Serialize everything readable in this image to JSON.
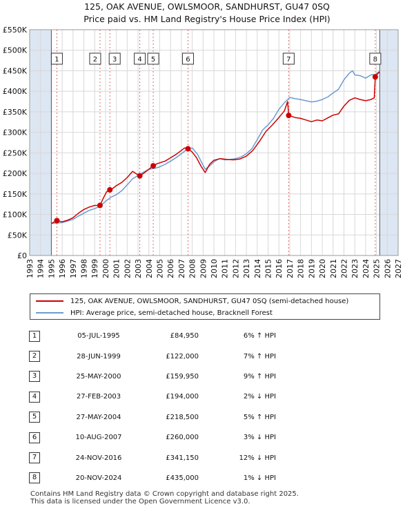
{
  "title_line1": "125, OAK AVENUE, OWLSMOOR, SANDHURST, GU47 0SQ",
  "title_line2": "Price paid vs. HM Land Registry's House Price Index (HPI)",
  "legend": {
    "property": "125, OAK AVENUE, OWLSMOOR, SANDHURST, GU47 0SQ (semi-detached house)",
    "hpi": "HPI: Average price, semi-detached house, Bracknell Forest"
  },
  "colors": {
    "property": "#cc0000",
    "hpi": "#6c9bd1",
    "shade": "#dde6f3",
    "grid": "#d8d8d8",
    "marker_line": "#e06666"
  },
  "chart_data": {
    "type": "line",
    "title": "125, OAK AVENUE, OWLSMOOR, SANDHURST, GU47 0SQ",
    "subtitle": "Price paid vs. HM Land Registry's House Price Index (HPI)",
    "xlim": [
      1993,
      2027
    ],
    "ylim": [
      0,
      550000
    ],
    "x_ticks": [
      1993,
      1994,
      1995,
      1996,
      1997,
      1998,
      1999,
      2000,
      2001,
      2002,
      2003,
      2004,
      2005,
      2006,
      2007,
      2008,
      2009,
      2010,
      2011,
      2012,
      2013,
      2014,
      2015,
      2016,
      2017,
      2018,
      2019,
      2020,
      2021,
      2022,
      2023,
      2024,
      2025,
      2026,
      2027
    ],
    "y_ticks": [
      0,
      50000,
      100000,
      150000,
      200000,
      250000,
      300000,
      350000,
      400000,
      450000,
      500000,
      550000
    ],
    "y_tick_labels": [
      "£0",
      "£50K",
      "£100K",
      "£150K",
      "£200K",
      "£250K",
      "£300K",
      "£350K",
      "£400K",
      "£450K",
      "£500K",
      "£550K"
    ],
    "data_range_x": [
      1995.0,
      2025.3
    ],
    "series": [
      {
        "name": "125, OAK AVENUE, OWLSMOOR, SANDHURST, GU47 0SQ (semi-detached house)",
        "color": "#cc0000",
        "x": [
          1995.0,
          1995.51,
          1996.0,
          1996.5,
          1997.0,
          1997.5,
          1998.0,
          1998.5,
          1999.0,
          1999.49,
          1999.8,
          2000.1,
          2000.4,
          2000.6,
          2001.0,
          2001.5,
          2002.0,
          2002.5,
          2002.9,
          2003.16,
          2003.5,
          2003.9,
          2004.4,
          2004.8,
          2005.5,
          2006.0,
          2006.5,
          2007.0,
          2007.3,
          2007.61,
          2008.0,
          2008.4,
          2008.8,
          2009.2,
          2009.6,
          2010.0,
          2010.6,
          2011.2,
          2011.8,
          2012.4,
          2013.0,
          2013.6,
          2014.2,
          2014.8,
          2015.4,
          2016.0,
          2016.5,
          2016.8,
          2016.9,
          2017.5,
          2018.0,
          2018.5,
          2019.0,
          2019.5,
          2020.0,
          2020.5,
          2021.0,
          2021.5,
          2022.0,
          2022.5,
          2023.0,
          2023.5,
          2024.0,
          2024.5,
          2024.8,
          2024.89,
          2025.0,
          2025.3
        ],
        "values": [
          78000,
          84950,
          82000,
          86000,
          92000,
          103000,
          112000,
          118000,
          122000,
          122000,
          140000,
          155000,
          159950,
          162000,
          170000,
          178000,
          190000,
          205000,
          198000,
          194000,
          200000,
          208000,
          218500,
          224000,
          230000,
          238000,
          246000,
          256000,
          262000,
          260000,
          252000,
          238000,
          218000,
          202000,
          222000,
          232000,
          236000,
          234000,
          233000,
          235000,
          242000,
          256000,
          278000,
          302000,
          318000,
          336000,
          352000,
          375000,
          341150,
          336000,
          334000,
          330000,
          326000,
          330000,
          328000,
          335000,
          342000,
          345000,
          364000,
          378000,
          384000,
          380000,
          377000,
          380000,
          384000,
          435000,
          440000,
          447000
        ]
      },
      {
        "name": "HPI: Average price, semi-detached house, Bracknell Forest",
        "color": "#6c9bd1",
        "x": [
          1995.0,
          1995.5,
          1996.0,
          1996.5,
          1997.0,
          1997.5,
          1998.0,
          1998.5,
          1999.0,
          1999.5,
          2000.0,
          2000.5,
          2001.0,
          2001.5,
          2002.0,
          2002.5,
          2003.0,
          2003.5,
          2004.0,
          2004.5,
          2005.0,
          2005.5,
          2006.0,
          2006.5,
          2007.0,
          2007.5,
          2008.0,
          2008.5,
          2008.9,
          2009.2,
          2009.6,
          2010.0,
          2010.5,
          2011.0,
          2011.5,
          2012.0,
          2012.5,
          2013.0,
          2013.5,
          2014.0,
          2014.5,
          2015.0,
          2015.5,
          2016.0,
          2016.5,
          2017.0,
          2017.5,
          2018.0,
          2018.5,
          2019.0,
          2019.5,
          2020.0,
          2020.5,
          2021.0,
          2021.5,
          2022.0,
          2022.5,
          2022.8,
          2023.0,
          2023.5,
          2024.0,
          2024.5,
          2024.9,
          2025.3
        ],
        "values": [
          78000,
          79000,
          80000,
          84000,
          88000,
          96000,
          103000,
          110000,
          114000,
          120000,
          132000,
          142000,
          148000,
          158000,
          172000,
          187000,
          195000,
          203000,
          210000,
          212000,
          216000,
          222000,
          230000,
          238000,
          248000,
          258000,
          262000,
          246000,
          225000,
          210000,
          218000,
          228000,
          236000,
          233000,
          234000,
          236000,
          240000,
          248000,
          260000,
          282000,
          306000,
          318000,
          334000,
          356000,
          372000,
          385000,
          382000,
          380000,
          377000,
          374000,
          376000,
          380000,
          386000,
          396000,
          405000,
          428000,
          444000,
          450000,
          440000,
          438000,
          432000,
          440000,
          441000,
          449000
        ]
      }
    ],
    "markers": [
      {
        "label": "1",
        "x": 1995.51,
        "value": 84950
      },
      {
        "label": "2",
        "x": 1999.49,
        "value": 122000
      },
      {
        "label": "3",
        "x": 2000.4,
        "value": 159950
      },
      {
        "label": "4",
        "x": 2003.16,
        "value": 194000
      },
      {
        "label": "5",
        "x": 2004.4,
        "value": 218500
      },
      {
        "label": "6",
        "x": 2007.61,
        "value": 260000
      },
      {
        "label": "7",
        "x": 2016.9,
        "value": 341150
      },
      {
        "label": "8",
        "x": 2024.89,
        "value": 435000
      }
    ]
  },
  "sales": [
    {
      "num": "1",
      "date": "05-JUL-1995",
      "price": "£84,950",
      "hpi": "6% ↑ HPI"
    },
    {
      "num": "2",
      "date": "28-JUN-1999",
      "price": "£122,000",
      "hpi": "7% ↑ HPI"
    },
    {
      "num": "3",
      "date": "25-MAY-2000",
      "price": "£159,950",
      "hpi": "9% ↑ HPI"
    },
    {
      "num": "4",
      "date": "27-FEB-2003",
      "price": "£194,000",
      "hpi": "2% ↓ HPI"
    },
    {
      "num": "5",
      "date": "27-MAY-2004",
      "price": "£218,500",
      "hpi": "5% ↑ HPI"
    },
    {
      "num": "6",
      "date": "10-AUG-2007",
      "price": "£260,000",
      "hpi": "3% ↓ HPI"
    },
    {
      "num": "7",
      "date": "24-NOV-2016",
      "price": "£341,150",
      "hpi": "12% ↓ HPI"
    },
    {
      "num": "8",
      "date": "20-NOV-2024",
      "price": "£435,000",
      "hpi": "1% ↓ HPI"
    }
  ],
  "footer": {
    "line1": "Contains HM Land Registry data © Crown copyright and database right 2025.",
    "line2": "This data is licensed under the Open Government Licence v3.0."
  }
}
